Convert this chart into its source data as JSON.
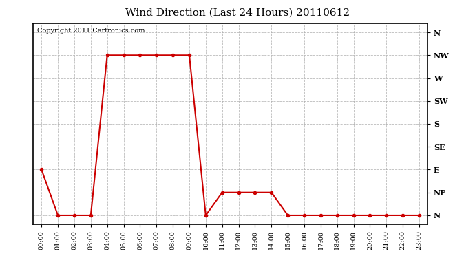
{
  "title": "Wind Direction (Last 24 Hours) 20110612",
  "copyright_text": "Copyright 2011 Cartronics.com",
  "x_labels": [
    "00:00",
    "01:00",
    "02:00",
    "03:00",
    "04:00",
    "05:00",
    "06:00",
    "07:00",
    "08:00",
    "09:00",
    "10:00",
    "11:00",
    "12:00",
    "13:00",
    "14:00",
    "15:00",
    "16:00",
    "17:00",
    "18:00",
    "19:00",
    "20:00",
    "21:00",
    "22:00",
    "23:00"
  ],
  "y_labels": [
    "N",
    "NE",
    "E",
    "SE",
    "S",
    "SW",
    "W",
    "NW",
    "N"
  ],
  "data_hours": [
    0,
    1,
    2,
    3,
    4,
    5,
    6,
    7,
    8,
    9,
    10,
    11,
    12,
    13,
    14,
    15,
    16,
    17,
    18,
    19,
    20,
    21,
    22,
    23
  ],
  "data_values": [
    2,
    0,
    0,
    0,
    7,
    7,
    7,
    7,
    7,
    7,
    0,
    1,
    1,
    1,
    1,
    0,
    0,
    0,
    0,
    0,
    0,
    0,
    0,
    0
  ],
  "line_color": "#cc0000",
  "marker": "o",
  "marker_size": 3,
  "bg_color": "#ffffff",
  "grid_color": "#aaaaaa",
  "title_fontsize": 11,
  "axis_label_fontsize": 8,
  "copyright_fontsize": 7
}
